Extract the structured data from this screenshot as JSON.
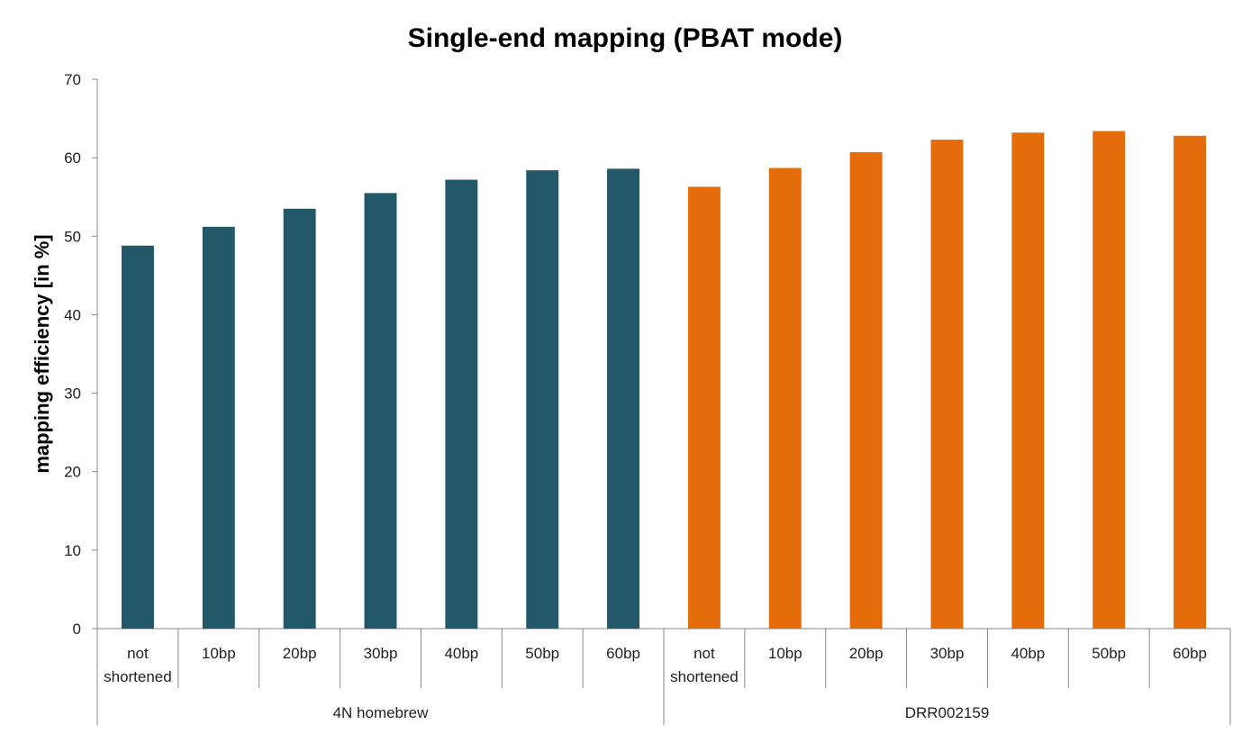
{
  "chart_data": {
    "type": "bar",
    "title": "Single-end mapping (PBAT mode)",
    "xlabel": "",
    "ylabel": "mapping efficiency [in %]",
    "ylim": [
      0,
      70
    ],
    "yticks": [
      0,
      10,
      20,
      30,
      40,
      50,
      60,
      70
    ],
    "grid": false,
    "legend": "none",
    "groups": [
      {
        "name": "4N homebrew",
        "color": "#235868",
        "categories": [
          "not shortened",
          "10bp",
          "20bp",
          "30bp",
          "40bp",
          "50bp",
          "60bp"
        ],
        "values": [
          48.8,
          51.2,
          53.5,
          55.5,
          57.2,
          58.4,
          58.6
        ]
      },
      {
        "name": "DRR002159",
        "color": "#E46C0A",
        "categories": [
          "not shortened",
          "10bp",
          "20bp",
          "30bp",
          "40bp",
          "50bp",
          "60bp"
        ],
        "values": [
          56.3,
          58.7,
          60.7,
          62.3,
          63.2,
          63.4,
          62.8
        ]
      }
    ]
  }
}
